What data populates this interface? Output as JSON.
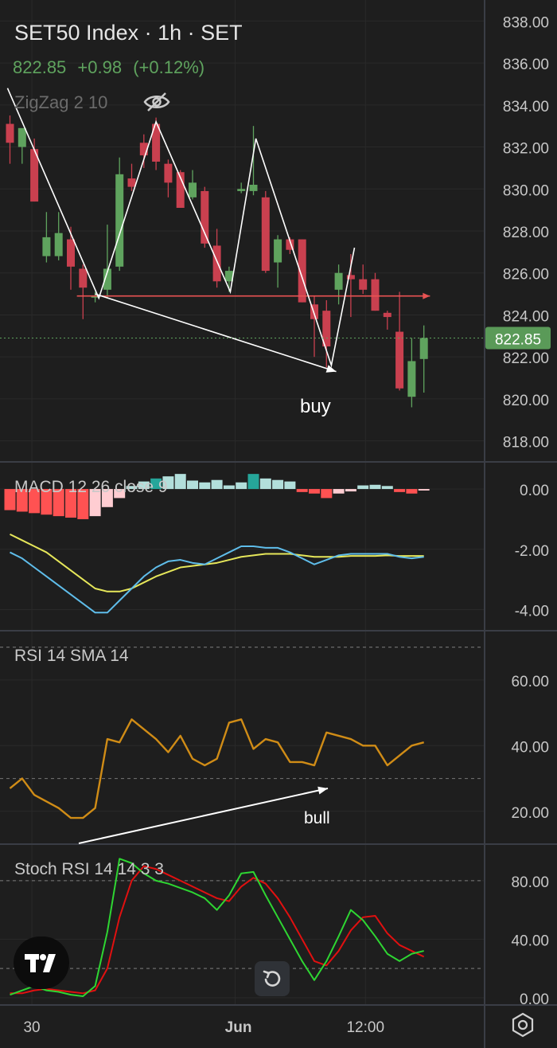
{
  "header": {
    "title": "SET50 Index · 1h · SET",
    "last_price": "822.85",
    "change": "+0.98",
    "change_pct": "(+0.12%)",
    "indicator": "ZigZag 2 10"
  },
  "colors": {
    "background": "#1e1e1e",
    "up": "#5fa35e",
    "down": "#c9404f",
    "grid": "#2a2a2a",
    "separator": "#3a3d45",
    "macd_line": "#5fbdea",
    "signal_line": "#e6e75a",
    "rsi_line": "#d08c16",
    "stoch_k": "#2ed632",
    "stoch_d": "#e11010",
    "price_label_bg": "#5a9a58",
    "hline": "#e85353",
    "drawing": "#ffffff"
  },
  "annotations": {
    "buy": "buy",
    "bull": "bull"
  },
  "chart_data": [
    {
      "type": "candlestick",
      "title": "SET50 Index · 1h · SET",
      "ylim": [
        817,
        839
      ],
      "y_ticks": [
        "838.00",
        "836.00",
        "834.00",
        "832.00",
        "830.00",
        "828.00",
        "826.00",
        "824.00",
        "822.00",
        "820.00",
        "818.00"
      ],
      "x_ticks": [
        "30",
        "Jun",
        "12:00"
      ],
      "last_price_label": "822.85",
      "candles": [
        {
          "o": 833.1,
          "h": 833.5,
          "l": 831.2,
          "c": 832.2
        },
        {
          "o": 832.0,
          "h": 832.7,
          "l": 831.2,
          "c": 832.9
        },
        {
          "o": 831.9,
          "h": 832.4,
          "l": 829.4,
          "c": 829.4
        },
        {
          "o": 826.8,
          "h": 828.9,
          "l": 826.5,
          "c": 827.7
        },
        {
          "o": 826.8,
          "h": 828.9,
          "l": 826.6,
          "c": 827.9
        },
        {
          "o": 827.6,
          "h": 828.2,
          "l": 825.2,
          "c": 826.3
        },
        {
          "o": 826.2,
          "h": 826.4,
          "l": 823.8,
          "c": 825.3
        },
        {
          "o": 824.9,
          "h": 825.1,
          "l": 824.6,
          "c": 824.9
        },
        {
          "o": 825.2,
          "h": 828.3,
          "l": 824.8,
          "c": 826.2
        },
        {
          "o": 826.3,
          "h": 831.5,
          "l": 826.1,
          "c": 830.7
        },
        {
          "o": 830.5,
          "h": 831.2,
          "l": 829.9,
          "c": 830.1
        },
        {
          "o": 832.2,
          "h": 832.6,
          "l": 831.0,
          "c": 831.6
        },
        {
          "o": 833.1,
          "h": 833.4,
          "l": 830.9,
          "c": 831.3
        },
        {
          "o": 831.2,
          "h": 831.4,
          "l": 829.6,
          "c": 830.3
        },
        {
          "o": 830.8,
          "h": 830.9,
          "l": 829.3,
          "c": 829.1
        },
        {
          "o": 829.6,
          "h": 830.9,
          "l": 829.5,
          "c": 830.3
        },
        {
          "o": 829.9,
          "h": 830.1,
          "l": 827.2,
          "c": 827.4
        },
        {
          "o": 827.3,
          "h": 828.1,
          "l": 825.3,
          "c": 825.6
        },
        {
          "o": 825.6,
          "h": 826.3,
          "l": 825.1,
          "c": 826.1
        },
        {
          "o": 829.9,
          "h": 830.3,
          "l": 829.8,
          "c": 830.0
        },
        {
          "o": 829.9,
          "h": 833.0,
          "l": 829.7,
          "c": 830.2
        },
        {
          "o": 829.6,
          "h": 829.9,
          "l": 826.0,
          "c": 826.1
        },
        {
          "o": 826.5,
          "h": 827.8,
          "l": 825.3,
          "c": 827.6
        },
        {
          "o": 827.6,
          "h": 827.7,
          "l": 826.9,
          "c": 827.1
        },
        {
          "o": 827.6,
          "h": 827.6,
          "l": 824.6,
          "c": 824.6
        },
        {
          "o": 824.5,
          "h": 824.9,
          "l": 822.0,
          "c": 823.8
        },
        {
          "o": 824.2,
          "h": 824.7,
          "l": 821.5,
          "c": 822.5
        },
        {
          "o": 825.2,
          "h": 826.4,
          "l": 824.5,
          "c": 826.0
        },
        {
          "o": 825.9,
          "h": 826.9,
          "l": 823.9,
          "c": 825.7
        },
        {
          "o": 825.7,
          "h": 826.4,
          "l": 825.0,
          "c": 825.2
        },
        {
          "o": 825.7,
          "h": 826.0,
          "l": 824.2,
          "c": 824.2
        },
        {
          "o": 824.1,
          "h": 824.2,
          "l": 823.3,
          "c": 823.9
        },
        {
          "o": 823.2,
          "h": 825.1,
          "l": 820.4,
          "c": 820.5
        },
        {
          "o": 820.1,
          "h": 822.9,
          "l": 819.6,
          "c": 821.8
        },
        {
          "o": 821.9,
          "h": 823.5,
          "l": 820.3,
          "c": 822.9
        }
      ],
      "zigzag": [
        {
          "i": -0.2,
          "y": 834.8
        },
        {
          "i": 7.3,
          "y": 824.8
        },
        {
          "i": 12.0,
          "y": 833.2
        },
        {
          "i": 18.1,
          "y": 825.1
        },
        {
          "i": 20.2,
          "y": 832.4
        },
        {
          "i": 26.4,
          "y": 821.6
        },
        {
          "i": 28.3,
          "y": 827.2
        }
      ],
      "horizontal_line": {
        "y": 824.9,
        "from_i": 5.5,
        "to_i": 34.5
      },
      "trend_line": {
        "from": {
          "i": 7.0,
          "y": 825.0
        },
        "to": {
          "i": 26.8,
          "y": 821.3
        }
      }
    },
    {
      "type": "histogram+line",
      "title": "MACD 12 26 close 9",
      "ylim": [
        -4.7,
        0.9
      ],
      "y_ticks": [
        "0.00",
        "-2.00",
        "-4.00"
      ],
      "histogram": [
        -0.7,
        -0.75,
        -0.8,
        -0.85,
        -0.9,
        -0.95,
        -1.0,
        -0.9,
        -0.6,
        -0.3,
        0.1,
        0.25,
        0.35,
        0.42,
        0.5,
        0.28,
        0.22,
        0.3,
        0.12,
        0.22,
        0.5,
        0.35,
        0.3,
        0.25,
        -0.1,
        -0.15,
        -0.3,
        -0.15,
        -0.08,
        0.12,
        0.14,
        0.1,
        -0.1,
        -0.15,
        -0.05
      ],
      "histogram_colors": [
        "#ff5252",
        "#ff5252",
        "#ff5252",
        "#ff5252",
        "#ff5252",
        "#ff5252",
        "#ff5252",
        "#ffcdd2",
        "#ffcdd2",
        "#ffcdd2",
        "#b2dfdb",
        "#b2dfdb",
        "#26a69a",
        "#b2dfdb",
        "#b2dfdb",
        "#b2dfdb",
        "#b2dfdb",
        "#b2dfdb",
        "#b2dfdb",
        "#b2dfdb",
        "#26a69a",
        "#b2dfdb",
        "#b2dfdb",
        "#b2dfdb",
        "#ff5252",
        "#ff5252",
        "#ff5252",
        "#ffcdd2",
        "#ffcdd2",
        "#b2dfdb",
        "#b2dfdb",
        "#b2dfdb",
        "#ff5252",
        "#ff5252",
        "#ffcdd2"
      ],
      "series": [
        {
          "values": [
            -2.1,
            -2.3,
            -2.6,
            -2.9,
            -3.2,
            -3.5,
            -3.8,
            -4.1,
            -4.1,
            -3.7,
            -3.3,
            -2.9,
            -2.6,
            -2.4,
            -2.35,
            -2.45,
            -2.5,
            -2.3,
            -2.1,
            -1.9,
            -1.9,
            -1.95,
            -1.95,
            -2.1,
            -2.3,
            -2.5,
            -2.35,
            -2.2,
            -2.15,
            -2.15,
            -2.15,
            -2.15,
            -2.25,
            -2.3,
            -2.25
          ]
        },
        {
          "values": [
            -1.5,
            -1.7,
            -1.9,
            -2.1,
            -2.4,
            -2.7,
            -3.0,
            -3.3,
            -3.4,
            -3.4,
            -3.3,
            -3.1,
            -2.9,
            -2.75,
            -2.6,
            -2.55,
            -2.5,
            -2.45,
            -2.35,
            -2.25,
            -2.2,
            -2.15,
            -2.15,
            -2.15,
            -2.2,
            -2.25,
            -2.25,
            -2.25,
            -2.22,
            -2.22,
            -2.22,
            -2.2,
            -2.22,
            -2.22,
            -2.22
          ]
        }
      ]
    },
    {
      "type": "line",
      "title": "RSI 14 SMA 14",
      "ylim": [
        10,
        75
      ],
      "y_ticks": [
        "60.00",
        "40.00",
        "20.00"
      ],
      "levels": [
        70,
        30
      ],
      "series": [
        {
          "values": [
            27,
            30,
            25,
            23,
            21,
            18,
            18,
            21,
            42,
            41,
            48,
            45,
            42,
            38,
            43,
            36,
            34,
            36,
            47,
            48,
            39,
            42,
            41,
            35,
            35,
            34,
            44,
            43,
            42,
            40,
            40,
            34,
            37,
            40,
            41
          ]
        }
      ]
    },
    {
      "type": "line",
      "title": "Stoch RSI 14 14 3 3",
      "ylim": [
        -5,
        105
      ],
      "y_ticks": [
        "80.00",
        "40.00",
        "0.00"
      ],
      "levels": [
        80,
        20
      ],
      "series": [
        {
          "values": [
            2,
            5,
            8,
            5,
            4,
            2,
            1,
            8,
            45,
            95,
            92,
            85,
            80,
            78,
            75,
            72,
            68,
            60,
            70,
            85,
            86,
            70,
            55,
            40,
            25,
            12,
            25,
            42,
            60,
            53,
            42,
            30,
            25,
            30,
            32
          ]
        },
        {
          "values": [
            3,
            3,
            5,
            6,
            5,
            4,
            3,
            5,
            20,
            55,
            80,
            90,
            88,
            84,
            80,
            76,
            72,
            68,
            66,
            76,
            82,
            78,
            68,
            55,
            40,
            25,
            22,
            32,
            46,
            55,
            56,
            44,
            36,
            32,
            28
          ]
        }
      ]
    }
  ]
}
